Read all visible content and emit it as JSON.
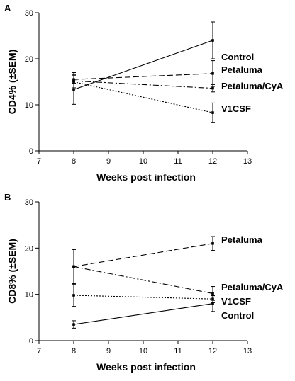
{
  "chart_data": [
    {
      "panel": "A",
      "type": "line",
      "xlabel": "Weeks post infection",
      "ylabel": "CD4% (±SEM)",
      "xlim": [
        7,
        13
      ],
      "ylim": [
        0,
        30
      ],
      "xticks": [
        7,
        8,
        9,
        10,
        11,
        12,
        13
      ],
      "yticks": [
        0,
        10,
        20,
        30
      ],
      "grid": false,
      "legend": "labels at line ends (right)",
      "series": [
        {
          "name": "Control",
          "dash": "solid",
          "x": [
            8,
            12
          ],
          "y": [
            13.3,
            24.0
          ],
          "err": [
            3.2,
            4.0
          ]
        },
        {
          "name": "Petaluma",
          "dash": "dashed",
          "x": [
            8,
            12
          ],
          "y": [
            15.5,
            16.8
          ],
          "err": [
            0.8,
            2.8
          ]
        },
        {
          "name": "Petaluma/CyA",
          "dash": "dashdot",
          "x": [
            8,
            12
          ],
          "y": [
            15.2,
            13.6
          ],
          "err": [
            1.5,
            0.8
          ]
        },
        {
          "name": "V1CSF",
          "dash": "dotted",
          "x": [
            8,
            12
          ],
          "y": [
            15.0,
            8.3
          ],
          "err": [
            2.0,
            2.1
          ]
        }
      ]
    },
    {
      "panel": "B",
      "type": "line",
      "xlabel": "Weeks post infection",
      "ylabel": "CD8% (±SEM)",
      "xlim": [
        7,
        13
      ],
      "ylim": [
        0,
        30
      ],
      "xticks": [
        7,
        8,
        9,
        10,
        11,
        12,
        13
      ],
      "yticks": [
        0,
        10,
        20,
        30
      ],
      "grid": false,
      "legend": "labels at line ends (right)",
      "series": [
        {
          "name": "Petaluma",
          "dash": "dashed",
          "x": [
            8,
            12
          ],
          "y": [
            16.0,
            21.0
          ],
          "err": [
            3.7,
            1.5
          ]
        },
        {
          "name": "Petaluma/CyA",
          "dash": "dashdot",
          "x": [
            8,
            12
          ],
          "y": [
            16.0,
            10.2
          ],
          "err": [
            3.7,
            1.5
          ]
        },
        {
          "name": "V1CSF",
          "dash": "dotted",
          "x": [
            8,
            12
          ],
          "y": [
            9.8,
            9.0
          ],
          "err": [
            2.4,
            0.8
          ]
        },
        {
          "name": "Control",
          "dash": "solid",
          "x": [
            8,
            12
          ],
          "y": [
            3.5,
            8.0
          ],
          "err": [
            0.8,
            1.7
          ]
        }
      ]
    }
  ]
}
